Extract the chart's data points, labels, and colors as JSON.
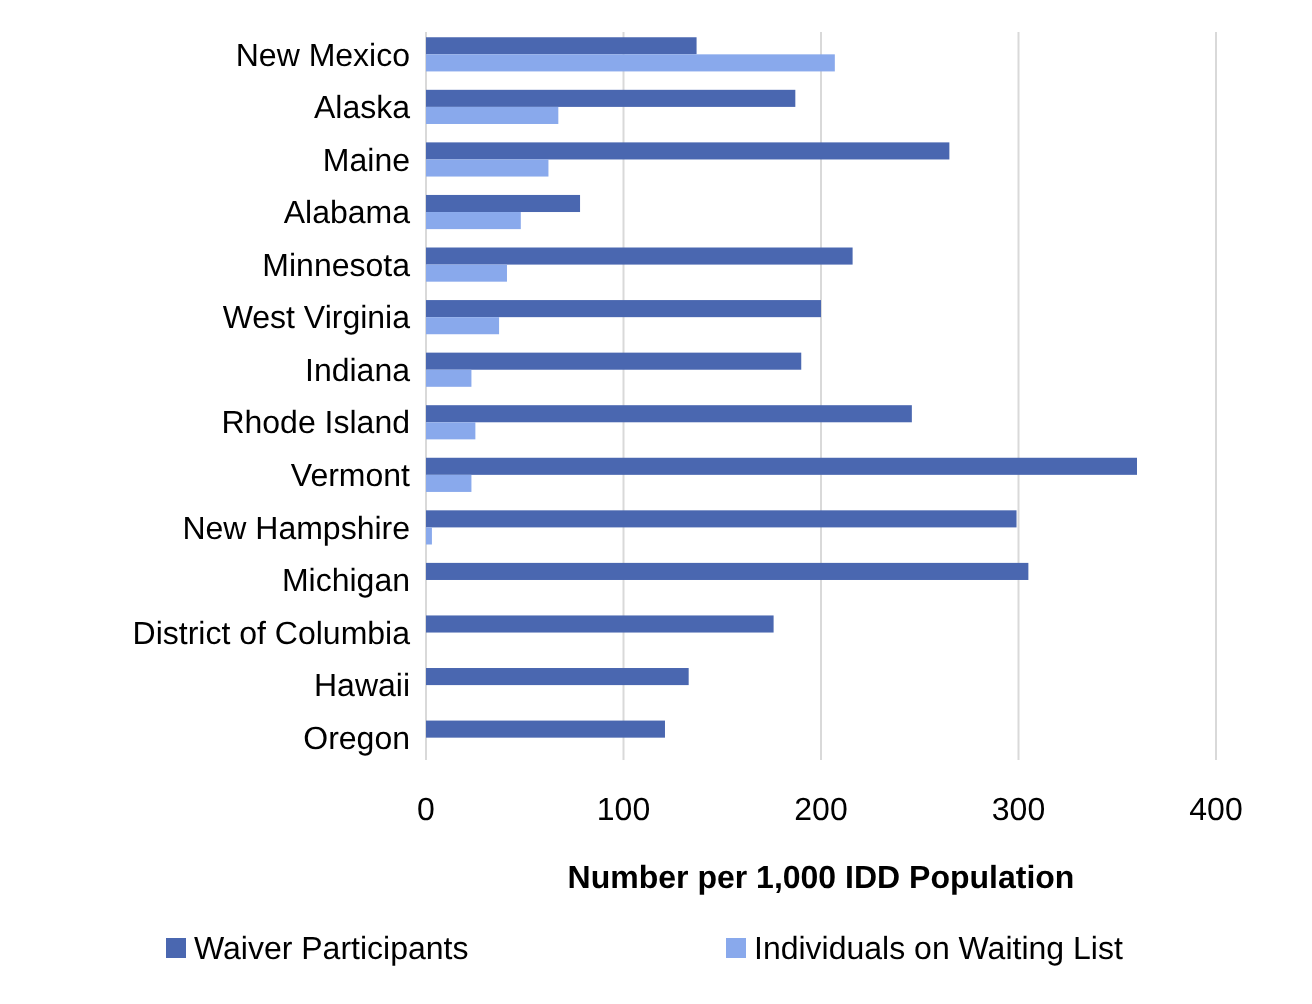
{
  "chart_data": {
    "type": "bar",
    "orientation": "horizontal",
    "xlabel": "Number per 1,000 IDD Population",
    "categories": [
      "New Mexico",
      "Alaska",
      "Maine",
      "Alabama",
      "Minnesota",
      "West Virginia",
      "Indiana",
      "Rhode Island",
      "Vermont",
      "New Hampshire",
      "Michigan",
      "District of Columbia",
      "Hawaii",
      "Oregon"
    ],
    "series": [
      {
        "name": "Waiver Participants",
        "color": "#4a67b0",
        "values": [
          137,
          187,
          265,
          78,
          216,
          200,
          190,
          246,
          360,
          299,
          305,
          176,
          133,
          121
        ]
      },
      {
        "name": "Individuals on Waiting List",
        "color": "#89a9ec",
        "values": [
          207,
          67,
          62,
          48,
          41,
          37,
          23,
          25,
          23,
          3,
          0,
          0,
          0,
          0
        ]
      }
    ],
    "xlim": [
      0,
      400
    ],
    "xticks": [
      0,
      100,
      200,
      300,
      400
    ],
    "grid": "x",
    "legend": "bottom"
  }
}
